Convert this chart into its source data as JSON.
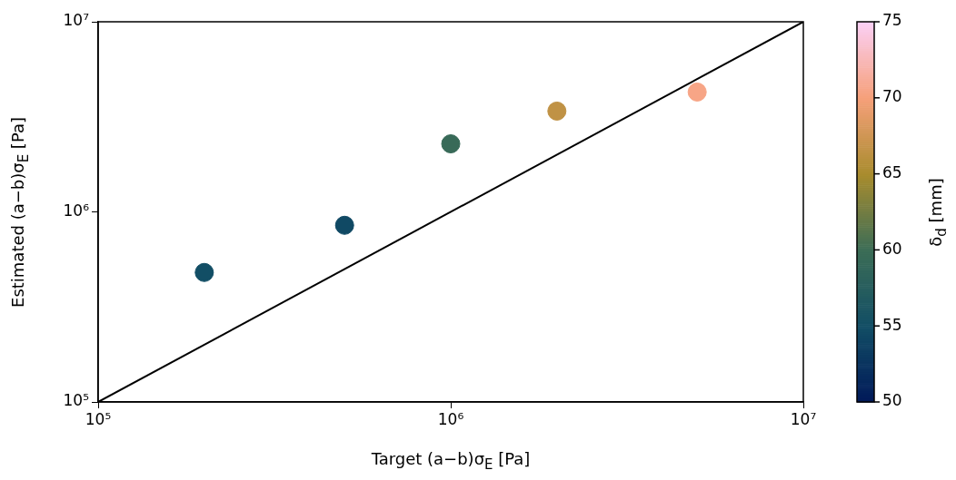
{
  "chart_data": {
    "type": "scatter",
    "xlabel": "Target (a−b)σ$_{E}$ [Pa]",
    "ylabel": "Estimated (a−b)σ$_{E}$ [Pa]",
    "clabel": "δ$_{d}$ [mm]",
    "log": "xy",
    "grid": false,
    "legend": false,
    "xlim": [
      100000,
      10000000
    ],
    "ylim": [
      100000,
      10000000
    ],
    "xticks": [
      {
        "value": 100000,
        "label": "10⁵"
      },
      {
        "value": 1000000,
        "label": "10⁶"
      },
      {
        "value": 10000000,
        "label": "10⁷"
      }
    ],
    "yticks": [
      {
        "value": 100000,
        "label": "10⁵"
      },
      {
        "value": 1000000,
        "label": "10⁶"
      },
      {
        "value": 10000000,
        "label": "10⁷"
      }
    ],
    "clim": [
      50,
      75
    ],
    "cticks": [
      50,
      55,
      60,
      65,
      70,
      75
    ],
    "series": [
      {
        "type": "scatter",
        "marker": "circle",
        "x": [
          200000,
          500000,
          1000000,
          2000000,
          5000000
        ],
        "values": [
          480000,
          850000,
          2280000,
          3390000,
          4270000
        ],
        "cvalues": [
          55,
          54.5,
          59.5,
          66.5,
          70.5
        ],
        "colors": [
          "#124e65",
          "#104964",
          "#386a58",
          "#c09245",
          "#f7a586"
        ]
      },
      {
        "type": "line",
        "marker": "none",
        "line_style": "solid",
        "color": "#000000",
        "x": [
          100000,
          10000000
        ],
        "values": [
          100000,
          10000000
        ]
      }
    ]
  }
}
